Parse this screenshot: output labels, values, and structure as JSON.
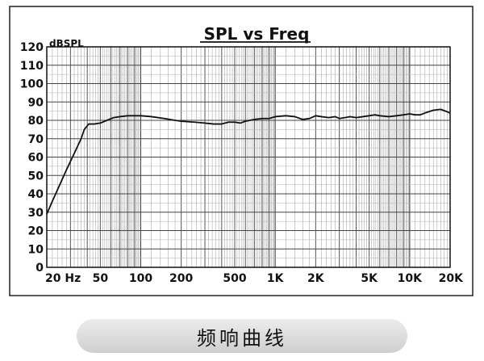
{
  "chart_data": {
    "type": "line",
    "title": "SPL vs Freq",
    "ylabel": "dBSPL",
    "xlabel": "",
    "x_scale": "log",
    "xlim": [
      20,
      20000
    ],
    "ylim": [
      0,
      120
    ],
    "y_ticks": [
      0,
      10,
      20,
      30,
      40,
      50,
      60,
      70,
      80,
      90,
      100,
      110,
      120
    ],
    "x_tick_labels": [
      {
        "value": 20,
        "label": "20 Hz"
      },
      {
        "value": 50,
        "label": "50"
      },
      {
        "value": 100,
        "label": "100"
      },
      {
        "value": 200,
        "label": "200"
      },
      {
        "value": 500,
        "label": "500"
      },
      {
        "value": 1000,
        "label": "1K"
      },
      {
        "value": 2000,
        "label": "2K"
      },
      {
        "value": 5000,
        "label": "5K"
      },
      {
        "value": 10000,
        "label": "10K"
      },
      {
        "value": 20000,
        "label": "20K"
      }
    ],
    "grid": true,
    "series": [
      {
        "color": "#111111",
        "points": [
          [
            20,
            29
          ],
          [
            22,
            36
          ],
          [
            25,
            45
          ],
          [
            28,
            53
          ],
          [
            32,
            62
          ],
          [
            36,
            70
          ],
          [
            38,
            75
          ],
          [
            41,
            78
          ],
          [
            45,
            78
          ],
          [
            50,
            78.5
          ],
          [
            56,
            80
          ],
          [
            63,
            81.5
          ],
          [
            70,
            82
          ],
          [
            80,
            82.5
          ],
          [
            90,
            82.5
          ],
          [
            100,
            82.5
          ],
          [
            120,
            82
          ],
          [
            150,
            81
          ],
          [
            180,
            80
          ],
          [
            200,
            79.5
          ],
          [
            250,
            79
          ],
          [
            300,
            78.5
          ],
          [
            350,
            78
          ],
          [
            400,
            78
          ],
          [
            450,
            79
          ],
          [
            500,
            79
          ],
          [
            550,
            78.5
          ],
          [
            600,
            79.5
          ],
          [
            700,
            80.5
          ],
          [
            800,
            81
          ],
          [
            900,
            81
          ],
          [
            1000,
            82
          ],
          [
            1200,
            82.5
          ],
          [
            1400,
            82
          ],
          [
            1600,
            80.5
          ],
          [
            1800,
            81
          ],
          [
            2000,
            82.5
          ],
          [
            2200,
            82
          ],
          [
            2500,
            81.5
          ],
          [
            2800,
            82
          ],
          [
            3000,
            81
          ],
          [
            3300,
            81.5
          ],
          [
            3600,
            82
          ],
          [
            4000,
            81.5
          ],
          [
            4500,
            82
          ],
          [
            5000,
            82.5
          ],
          [
            5500,
            83
          ],
          [
            6000,
            82.5
          ],
          [
            7000,
            82
          ],
          [
            8000,
            82.5
          ],
          [
            9000,
            83
          ],
          [
            10000,
            83.5
          ],
          [
            11000,
            83
          ],
          [
            12000,
            83
          ],
          [
            13000,
            84
          ],
          [
            15000,
            85.5
          ],
          [
            17000,
            86
          ],
          [
            18500,
            85
          ],
          [
            20000,
            84
          ]
        ]
      }
    ]
  },
  "caption": "频响曲线"
}
